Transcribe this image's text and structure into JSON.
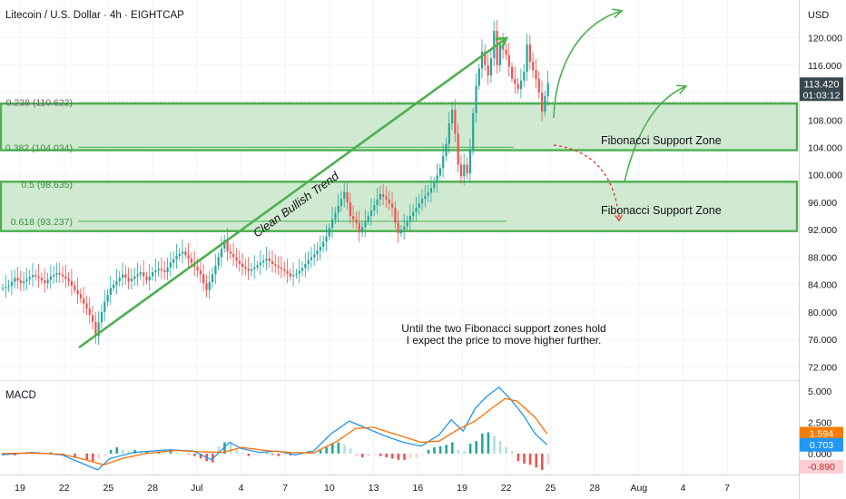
{
  "header": {
    "symbol_title": "Litecoin / U.S. Dollar · 4h · EIGHTCAP",
    "currency": "USD"
  },
  "price_tag": {
    "price": "113.420",
    "countdown": "01:03:12"
  },
  "colors": {
    "bull": "#26a69a",
    "bear": "#ef5350",
    "annotation_green": "#4caf50",
    "zone_fill": "#c8e6c9",
    "macd_line": "#2196f3",
    "signal_line": "#ff6d00",
    "price_tag": "#37474f",
    "macd_tag": "#2196f3",
    "signal_tag": "#f57c00",
    "hist_tag": "#ffcdd2"
  },
  "annotations": {
    "trend_label": "Clean Bullish Trend",
    "zone_label_upper": "Fibonacci Support Zone",
    "zone_label_lower": "Fibonacci Support Zone",
    "note_line1": "Until the two Fibonacci support zones hold",
    "note_line2": "I expect the price to move higher further."
  },
  "chart_data": [
    {
      "type": "candlestick",
      "title": "Litecoin / U.S. Dollar · 4h · EIGHTCAP",
      "y_unit": "USD",
      "ylim": [
        70.2,
        125.5
      ],
      "yticks": [
        "120.000",
        "116.000",
        "112.000",
        "108.000",
        "104.000",
        "100.000",
        "96.000",
        "92.000",
        "88.000",
        "84.000",
        "80.000",
        "76.000",
        "72.000"
      ],
      "x_tick_labels": [
        "19",
        "22",
        "25",
        "28",
        "Jul",
        "4",
        "7",
        "10",
        "13",
        "16",
        "19",
        "22",
        "25",
        "28",
        "Aug",
        "4",
        "7"
      ],
      "grid": true,
      "last_price": 113.42,
      "fib_levels": [
        {
          "label": "0.238 (110.622)",
          "value": 110.622
        },
        {
          "label": "0.382 (104.034)",
          "value": 104.034
        },
        {
          "label": "0.5 (98.635)",
          "value": 98.635
        },
        {
          "label": "0.618 (93.237)",
          "value": 93.237
        }
      ],
      "zones": [
        {
          "label": "Fibonacci Support Zone",
          "low": 103.6,
          "high": 110.4
        },
        {
          "label": "Fibonacci Support Zone",
          "low": 91.8,
          "high": 99.0
        }
      ],
      "price_path": [
        [
          0,
          83.5
        ],
        [
          2,
          83.8
        ],
        [
          4,
          85
        ],
        [
          6,
          84.2
        ],
        [
          8,
          84.8
        ],
        [
          10,
          85.4
        ],
        [
          12,
          85
        ],
        [
          14,
          84.2
        ],
        [
          16,
          85.2
        ],
        [
          18,
          85.7
        ],
        [
          20,
          85.2
        ],
        [
          22,
          84.5
        ],
        [
          24,
          83.2
        ],
        [
          26,
          82
        ],
        [
          28,
          80.5
        ],
        [
          30,
          78.6
        ],
        [
          31,
          76.5
        ],
        [
          32,
          78.5
        ],
        [
          34,
          81.5
        ],
        [
          36,
          83.5
        ],
        [
          38,
          84.5
        ],
        [
          40,
          85.5
        ],
        [
          42,
          84.5
        ],
        [
          44,
          85.2
        ],
        [
          46,
          85.8
        ],
        [
          48,
          84.6
        ],
        [
          50,
          85.8
        ],
        [
          52,
          86.3
        ],
        [
          54,
          85.8
        ],
        [
          56,
          87.2
        ],
        [
          58,
          88.2
        ],
        [
          60,
          88.8
        ],
        [
          62,
          87.8
        ],
        [
          64,
          86.6
        ],
        [
          66,
          85.5
        ],
        [
          67,
          84.2
        ],
        [
          68,
          83.2
        ],
        [
          70,
          85.5
        ],
        [
          72,
          88
        ],
        [
          74,
          90.5
        ],
        [
          75,
          88.8
        ],
        [
          76,
          88.5
        ],
        [
          78,
          87.5
        ],
        [
          80,
          86.6
        ],
        [
          82,
          86
        ],
        [
          84,
          86.5
        ],
        [
          86,
          87.2
        ],
        [
          88,
          87.8
        ],
        [
          90,
          87
        ],
        [
          92,
          86.5
        ],
        [
          94,
          86
        ],
        [
          96,
          85.2
        ],
        [
          98,
          85.6
        ],
        [
          100,
          86.4
        ],
        [
          102,
          87.6
        ],
        [
          104,
          88.4
        ],
        [
          106,
          89.5
        ],
        [
          108,
          91
        ],
        [
          110,
          93.5
        ],
        [
          112,
          95.5
        ],
        [
          114,
          97.5
        ],
        [
          115,
          96
        ],
        [
          116,
          94
        ],
        [
          118,
          93
        ],
        [
          119,
          91.6
        ],
        [
          120,
          92.4
        ],
        [
          122,
          94
        ],
        [
          124,
          95.6
        ],
        [
          126,
          97.2
        ],
        [
          128,
          96.4
        ],
        [
          130,
          95.2
        ],
        [
          131,
          93
        ],
        [
          132,
          91.5
        ],
        [
          134,
          92.5
        ],
        [
          136,
          94
        ],
        [
          138,
          95.2
        ],
        [
          140,
          96.5
        ],
        [
          142,
          97.4
        ],
        [
          144,
          98.8
        ],
        [
          146,
          101
        ],
        [
          148,
          104.5
        ],
        [
          149,
          107.5
        ],
        [
          150,
          109.5
        ],
        [
          151,
          106
        ],
        [
          152,
          101.5
        ],
        [
          153,
          99.8
        ],
        [
          154,
          101.5
        ],
        [
          155,
          100.2
        ],
        [
          156,
          103.5
        ],
        [
          157,
          109
        ],
        [
          158,
          113
        ],
        [
          160,
          118
        ],
        [
          161,
          116
        ],
        [
          162,
          114.5
        ],
        [
          163,
          117
        ],
        [
          164,
          121
        ],
        [
          165,
          116
        ],
        [
          166,
          119
        ],
        [
          168,
          117.5
        ],
        [
          170,
          114
        ],
        [
          172,
          112.5
        ],
        [
          174,
          115
        ],
        [
          175,
          119
        ],
        [
          176,
          116.5
        ],
        [
          178,
          114
        ],
        [
          179,
          112
        ],
        [
          180,
          109.2
        ],
        [
          181,
          111.5
        ],
        [
          182,
          113.4
        ]
      ]
    },
    {
      "type": "line",
      "title": "MACD",
      "ylim": [
        -1.6,
        5.8
      ],
      "yticks": [
        "5.000",
        "2.500",
        "0.000"
      ],
      "tag_values": {
        "signal": "1.594",
        "macd": "0.703",
        "histogram": "-0.890"
      },
      "series": [
        {
          "key": "macd",
          "values": [
            [
              0,
              -0.1
            ],
            [
              10,
              0.1
            ],
            [
              20,
              -0.1
            ],
            [
              28,
              -0.9
            ],
            [
              32,
              -1.3
            ],
            [
              36,
              -0.4
            ],
            [
              44,
              0.1
            ],
            [
              56,
              0.3
            ],
            [
              64,
              0.2
            ],
            [
              70,
              -0.5
            ],
            [
              76,
              0.9
            ],
            [
              80,
              0.4
            ],
            [
              86,
              0.1
            ],
            [
              92,
              0.2
            ],
            [
              98,
              -0.1
            ],
            [
              104,
              0.2
            ],
            [
              110,
              1.6
            ],
            [
              116,
              2.6
            ],
            [
              122,
              2.0
            ],
            [
              128,
              1.4
            ],
            [
              134,
              0.9
            ],
            [
              140,
              0.6
            ],
            [
              146,
              1.5
            ],
            [
              150,
              2.7
            ],
            [
              154,
              1.8
            ],
            [
              158,
              3.6
            ],
            [
              162,
              4.6
            ],
            [
              166,
              5.3
            ],
            [
              170,
              4.3
            ],
            [
              174,
              3.1
            ],
            [
              178,
              1.6
            ],
            [
              182,
              0.703
            ]
          ]
        },
        {
          "key": "signal",
          "values": [
            [
              0,
              0
            ],
            [
              10,
              0.05
            ],
            [
              20,
              -0.05
            ],
            [
              28,
              -0.5
            ],
            [
              34,
              -0.9
            ],
            [
              40,
              -0.4
            ],
            [
              48,
              0
            ],
            [
              58,
              0.25
            ],
            [
              66,
              0.15
            ],
            [
              74,
              0.1
            ],
            [
              80,
              0.5
            ],
            [
              88,
              0.25
            ],
            [
              96,
              0.1
            ],
            [
              104,
              0.05
            ],
            [
              112,
              1.0
            ],
            [
              118,
              2.0
            ],
            [
              124,
              2.1
            ],
            [
              132,
              1.5
            ],
            [
              140,
              0.9
            ],
            [
              146,
              1.0
            ],
            [
              152,
              1.9
            ],
            [
              158,
              2.6
            ],
            [
              164,
              3.7
            ],
            [
              168,
              4.4
            ],
            [
              172,
              4.2
            ],
            [
              178,
              2.9
            ],
            [
              182,
              1.594
            ]
          ]
        }
      ],
      "histogram": [
        [
          0,
          -0.1
        ],
        [
          4,
          -0.15
        ],
        [
          8,
          -0.1
        ],
        [
          12,
          0.1
        ],
        [
          16,
          0.1
        ],
        [
          20,
          -0.1
        ],
        [
          24,
          -0.3
        ],
        [
          28,
          -0.5
        ],
        [
          30,
          -0.6
        ],
        [
          32,
          -0.4
        ],
        [
          34,
          -0.2
        ],
        [
          36,
          0.3
        ],
        [
          38,
          0.5
        ],
        [
          40,
          0.3
        ],
        [
          42,
          0.2
        ],
        [
          44,
          0.3
        ],
        [
          46,
          0.2
        ],
        [
          48,
          0.2
        ],
        [
          50,
          0.1
        ],
        [
          52,
          0.15
        ],
        [
          54,
          0.1
        ],
        [
          56,
          0.2
        ],
        [
          58,
          0.1
        ],
        [
          60,
          0.05
        ],
        [
          62,
          -0.05
        ],
        [
          64,
          -0.2
        ],
        [
          66,
          -0.4
        ],
        [
          68,
          -0.6
        ],
        [
          70,
          -0.7
        ],
        [
          72,
          0.6
        ],
        [
          74,
          0.9
        ],
        [
          76,
          0.8
        ],
        [
          78,
          0.3
        ],
        [
          80,
          0.1
        ],
        [
          82,
          -0.2
        ],
        [
          84,
          -0.1
        ],
        [
          86,
          -0.05
        ],
        [
          88,
          0.05
        ],
        [
          90,
          -0.1
        ],
        [
          92,
          -0.2
        ],
        [
          94,
          -0.1
        ],
        [
          96,
          -0.15
        ],
        [
          98,
          -0.1
        ],
        [
          100,
          0.1
        ],
        [
          102,
          0.2
        ],
        [
          104,
          0.1
        ],
        [
          106,
          0.3
        ],
        [
          108,
          0.5
        ],
        [
          110,
          0.8
        ],
        [
          112,
          0.9
        ],
        [
          114,
          0.7
        ],
        [
          116,
          0.4
        ],
        [
          118,
          -0.2
        ],
        [
          120,
          -0.3
        ],
        [
          122,
          -0.2
        ],
        [
          124,
          -0.1
        ],
        [
          126,
          -0.2
        ],
        [
          128,
          -0.3
        ],
        [
          130,
          -0.4
        ],
        [
          132,
          -0.5
        ],
        [
          134,
          -0.5
        ],
        [
          136,
          -0.4
        ],
        [
          138,
          -0.3
        ],
        [
          140,
          -0.1
        ],
        [
          142,
          0.3
        ],
        [
          144,
          0.5
        ],
        [
          146,
          0.6
        ],
        [
          148,
          0.7
        ],
        [
          150,
          0.9
        ],
        [
          152,
          0.3
        ],
        [
          154,
          0.2
        ],
        [
          156,
          0.8
        ],
        [
          158,
          1.0
        ],
        [
          160,
          1.6
        ],
        [
          162,
          1.7
        ],
        [
          164,
          1.4
        ],
        [
          166,
          1.0
        ],
        [
          168,
          0.5
        ],
        [
          170,
          0.2
        ],
        [
          172,
          -0.6
        ],
        [
          174,
          -0.8
        ],
        [
          176,
          -0.9
        ],
        [
          178,
          -1.1
        ],
        [
          180,
          -1.3
        ],
        [
          182,
          -0.89
        ]
      ]
    }
  ]
}
